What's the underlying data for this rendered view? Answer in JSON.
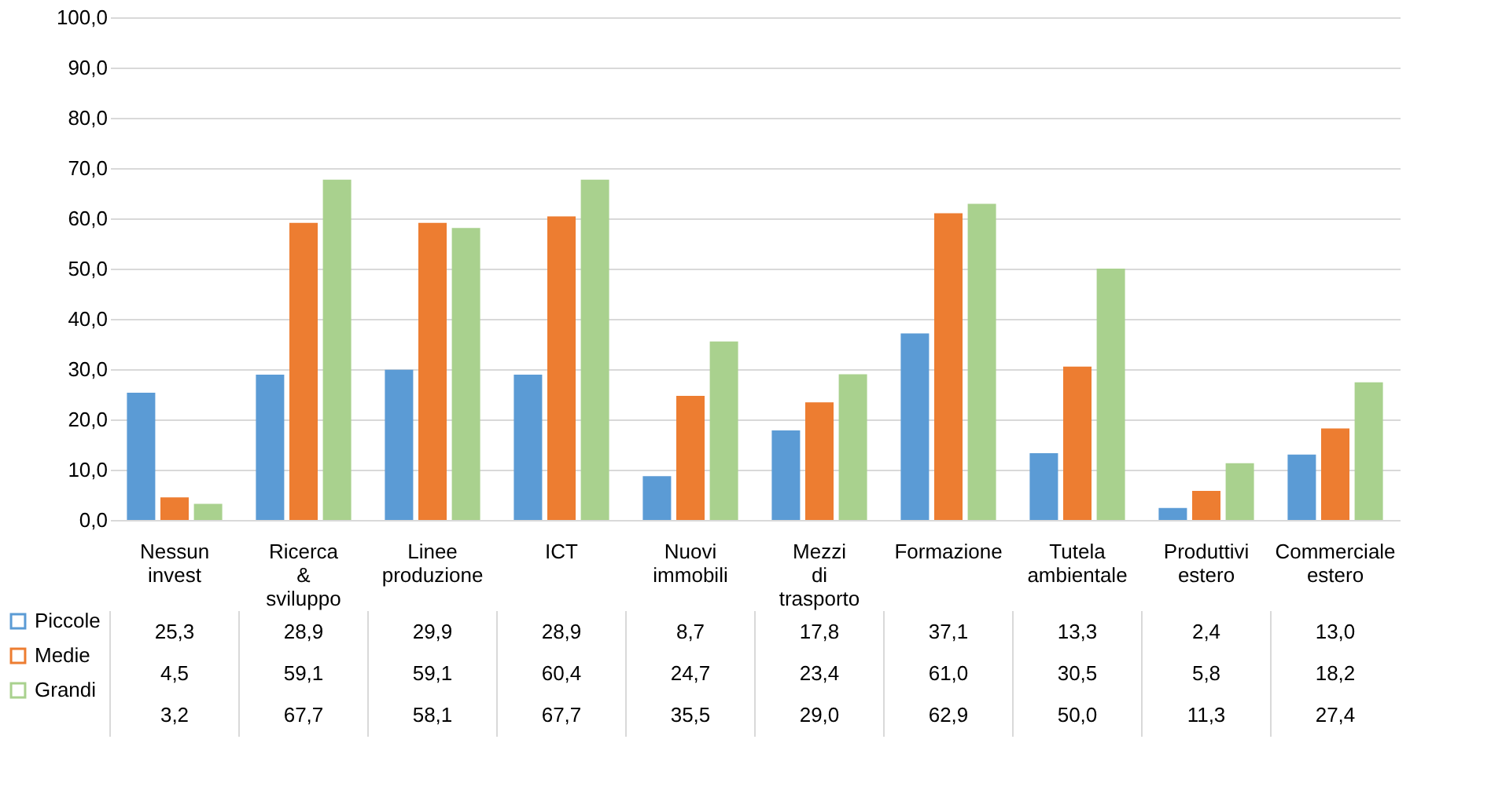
{
  "chart_data": {
    "type": "bar",
    "categories": [
      "Nessun invest",
      "Ricerca & sviluppo",
      "Linee produzione",
      "ICT",
      "Nuovi immobili",
      "Mezzi di trasporto",
      "Formazione",
      "Tutela ambientale",
      "Produttivi estero",
      "Commerciale estero"
    ],
    "series": [
      {
        "name": "Piccole",
        "color": "#5b9bd5",
        "values": [
          25.3,
          28.9,
          29.9,
          28.9,
          8.7,
          17.8,
          37.1,
          13.3,
          2.4,
          13.0
        ],
        "value_labels": [
          "25,3",
          "28,9",
          "29,9",
          "28,9",
          "8,7",
          "17,8",
          "37,1",
          "13,3",
          "2,4",
          "13,0"
        ]
      },
      {
        "name": "Medie",
        "color": "#ed7d31",
        "values": [
          4.5,
          59.1,
          59.1,
          60.4,
          24.7,
          23.4,
          61.0,
          30.5,
          5.8,
          18.2
        ],
        "value_labels": [
          "4,5",
          "59,1",
          "59,1",
          "60,4",
          "24,7",
          "23,4",
          "61,0",
          "30,5",
          "5,8",
          "18,2"
        ]
      },
      {
        "name": "Grandi",
        "color": "#a9d18e",
        "values": [
          3.2,
          67.7,
          58.1,
          67.7,
          35.5,
          29.0,
          62.9,
          50.0,
          11.3,
          27.4
        ],
        "value_labels": [
          "3,2",
          "67,7",
          "58,1",
          "67,7",
          "35,5",
          "29,0",
          "62,9",
          "50,0",
          "11,3",
          "27,4"
        ]
      }
    ],
    "ylim": [
      0,
      100
    ],
    "yticks": [
      {
        "value": 0,
        "label": "0,0"
      },
      {
        "value": 10,
        "label": "10,0"
      },
      {
        "value": 20,
        "label": "20,0"
      },
      {
        "value": 30,
        "label": "30,0"
      },
      {
        "value": 40,
        "label": "40,0"
      },
      {
        "value": 50,
        "label": "50,0"
      },
      {
        "value": 60,
        "label": "60,0"
      },
      {
        "value": 70,
        "label": "70,0"
      },
      {
        "value": 80,
        "label": "80,0"
      },
      {
        "value": 90,
        "label": "90,0"
      },
      {
        "value": 100,
        "label": "100,0"
      }
    ],
    "grid": "y",
    "legend": "bottom"
  }
}
